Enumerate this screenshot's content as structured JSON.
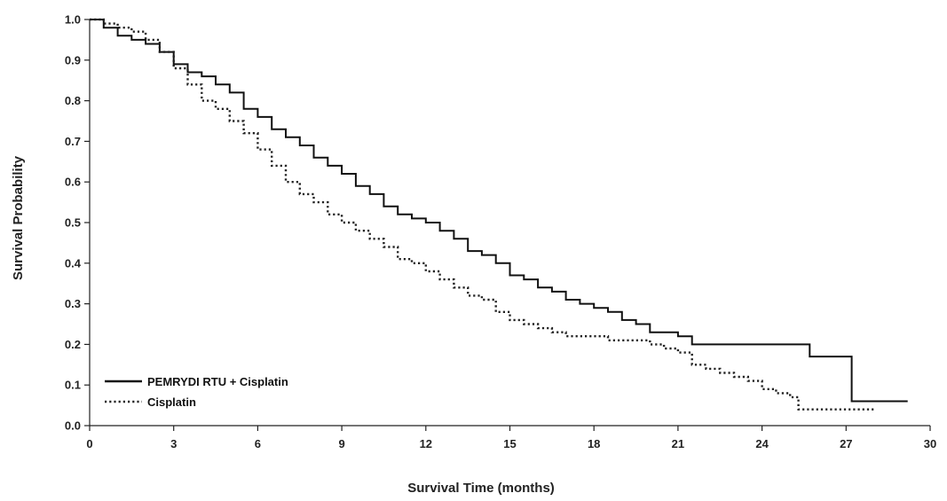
{
  "chart_data": {
    "type": "line",
    "title": "",
    "xlabel": "Survival Time (months)",
    "ylabel": "Survival Probability",
    "xlim": [
      0,
      30
    ],
    "ylim": [
      0.0,
      1.0
    ],
    "xticks": [
      0,
      3,
      6,
      9,
      12,
      15,
      18,
      21,
      24,
      27,
      30
    ],
    "yticks": [
      "0.0",
      "0.1",
      "0.2",
      "0.3",
      "0.4",
      "0.5",
      "0.6",
      "0.7",
      "0.8",
      "0.9",
      "1.0"
    ],
    "grid": false,
    "legend_position": "bottom-left",
    "step": true,
    "series": [
      {
        "name": "PEMRYDI RTU + Cisplatin",
        "style": "solid",
        "color": "#111111",
        "x": [
          0,
          0.5,
          1.0,
          1.5,
          2.0,
          2.5,
          3.0,
          3.5,
          4.0,
          4.5,
          5.0,
          5.5,
          6.0,
          6.5,
          7.0,
          7.5,
          8.0,
          8.5,
          9.0,
          9.5,
          10.0,
          10.5,
          11.0,
          11.5,
          12.0,
          12.5,
          13.0,
          13.5,
          14.0,
          14.5,
          15.0,
          15.5,
          16.0,
          16.5,
          17.0,
          17.5,
          18.0,
          18.5,
          19.0,
          19.5,
          20.0,
          20.5,
          21.0,
          21.5,
          22.5,
          24.0,
          25.7,
          27.0,
          27.2,
          29.2
        ],
        "y": [
          1.0,
          0.98,
          0.96,
          0.95,
          0.94,
          0.92,
          0.89,
          0.87,
          0.86,
          0.84,
          0.82,
          0.78,
          0.76,
          0.73,
          0.71,
          0.69,
          0.66,
          0.64,
          0.62,
          0.59,
          0.57,
          0.54,
          0.52,
          0.51,
          0.5,
          0.48,
          0.46,
          0.43,
          0.42,
          0.4,
          0.37,
          0.36,
          0.34,
          0.33,
          0.31,
          0.3,
          0.29,
          0.28,
          0.26,
          0.25,
          0.23,
          0.23,
          0.22,
          0.2,
          0.2,
          0.2,
          0.17,
          0.17,
          0.06,
          0.06
        ]
      },
      {
        "name": "Cisplatin",
        "style": "dotted",
        "color": "#222222",
        "x": [
          0,
          0.5,
          1.0,
          1.5,
          2.0,
          2.5,
          3.0,
          3.5,
          4.0,
          4.5,
          5.0,
          5.5,
          6.0,
          6.5,
          7.0,
          7.5,
          8.0,
          8.5,
          9.0,
          9.5,
          10.0,
          10.5,
          11.0,
          11.5,
          12.0,
          12.5,
          13.0,
          13.5,
          14.0,
          14.5,
          15.0,
          15.5,
          16.0,
          16.5,
          17.0,
          17.5,
          18.0,
          18.5,
          19.0,
          19.5,
          20.0,
          20.5,
          21.0,
          21.5,
          22.0,
          22.5,
          23.0,
          23.5,
          24.0,
          24.5,
          25.0,
          25.3,
          26.0,
          27.0,
          28.0
        ],
        "y": [
          1.0,
          0.99,
          0.98,
          0.97,
          0.95,
          0.92,
          0.88,
          0.84,
          0.8,
          0.78,
          0.75,
          0.72,
          0.68,
          0.64,
          0.6,
          0.57,
          0.55,
          0.52,
          0.5,
          0.48,
          0.46,
          0.44,
          0.41,
          0.4,
          0.38,
          0.36,
          0.34,
          0.32,
          0.31,
          0.28,
          0.26,
          0.25,
          0.24,
          0.23,
          0.22,
          0.22,
          0.22,
          0.21,
          0.21,
          0.21,
          0.2,
          0.19,
          0.18,
          0.15,
          0.14,
          0.13,
          0.12,
          0.11,
          0.09,
          0.08,
          0.07,
          0.04,
          0.04,
          0.04,
          0.04
        ]
      }
    ]
  }
}
